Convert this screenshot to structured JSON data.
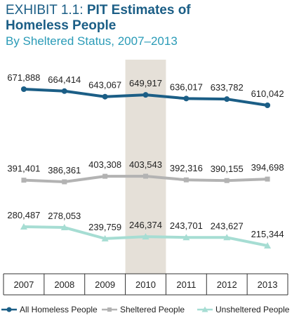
{
  "title": {
    "exhibit": "EXHIBIT 1.1:",
    "main_part1": "PIT Estimates of",
    "main_part2": "Homeless People",
    "subtitle": "By Sheltered Status, 2007–2013"
  },
  "chart_data": {
    "type": "line",
    "categories": [
      "2007",
      "2008",
      "2009",
      "2010",
      "2011",
      "2012",
      "2013"
    ],
    "highlight_category": "2010",
    "series": [
      {
        "name": "All Homeless People",
        "color": "#1b5e86",
        "marker": "circle",
        "values": [
          671888,
          664414,
          643067,
          649917,
          636017,
          633782,
          610042
        ],
        "labels": [
          "671,888",
          "664,414",
          "643,067",
          "649,917",
          "636,017",
          "633,782",
          "610,042"
        ]
      },
      {
        "name": "Sheltered People",
        "color": "#b3b3b3",
        "marker": "square",
        "values": [
          391401,
          386361,
          403308,
          403543,
          392316,
          390155,
          394698
        ],
        "labels": [
          "391,401",
          "386,361",
          "403,308",
          "403,543",
          "392,316",
          "390,155",
          "394,698"
        ]
      },
      {
        "name": "Unsheltered People",
        "color": "#a6ddd3",
        "marker": "triangle",
        "values": [
          280487,
          278053,
          239759,
          246374,
          243701,
          243627,
          215344
        ],
        "labels": [
          "280,487",
          "278,053",
          "239,759",
          "246,374",
          "243,701",
          "243,627",
          "215,344"
        ]
      }
    ],
    "legend_position": "bottom",
    "grid": false
  }
}
